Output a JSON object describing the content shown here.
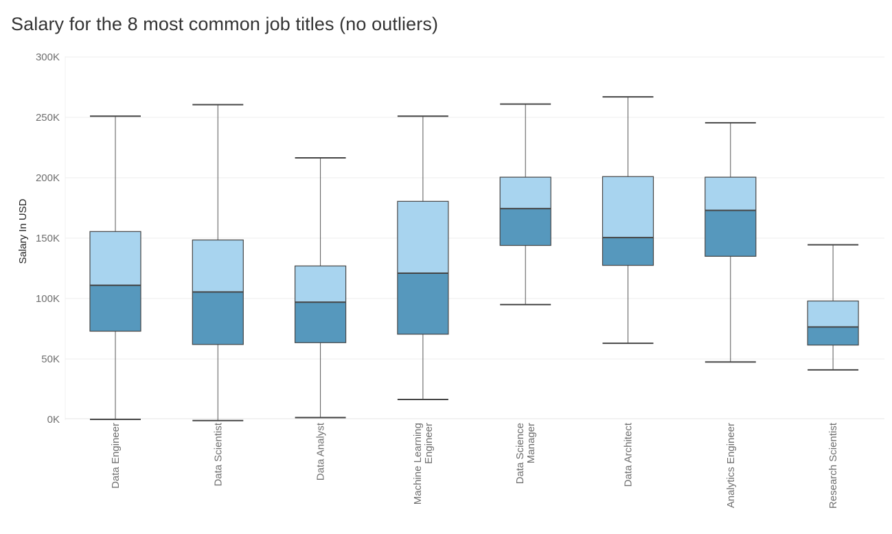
{
  "chart_data": {
    "type": "boxplot",
    "title": "Salary for the 8 most common job titles (no outliers)",
    "ylabel": "Salary In USD",
    "xlabel": "",
    "ylim": [
      0,
      300000
    ],
    "y_ticks": [
      {
        "value": 0,
        "label": "0K"
      },
      {
        "value": 50000,
        "label": "50K"
      },
      {
        "value": 100000,
        "label": "100K"
      },
      {
        "value": 150000,
        "label": "150K"
      },
      {
        "value": 200000,
        "label": "200K"
      },
      {
        "value": 250000,
        "label": "250K"
      },
      {
        "value": 300000,
        "label": "300K"
      }
    ],
    "grid": true,
    "colors": {
      "upper_box": "#a8d4ef",
      "lower_box": "#5698bd",
      "outline": "#444444",
      "whisker": "#555555",
      "grid": "#ececec"
    },
    "categories": [
      {
        "label_lines": [
          "Data Engineer"
        ],
        "min": 0,
        "q1": 73000,
        "median": 111000,
        "q3": 155500,
        "max": 251000
      },
      {
        "label_lines": [
          "Data Scientist"
        ],
        "min": -1000,
        "q1": 62000,
        "median": 105500,
        "q3": 148500,
        "max": 260500
      },
      {
        "label_lines": [
          "Data Analyst"
        ],
        "min": 1500,
        "q1": 63500,
        "median": 97000,
        "q3": 127000,
        "max": 216500
      },
      {
        "label_lines": [
          "Machine Learning",
          "Engineer"
        ],
        "min": 16500,
        "q1": 70500,
        "median": 121000,
        "q3": 180500,
        "max": 251000
      },
      {
        "label_lines": [
          "Data Science",
          "Manager"
        ],
        "min": 95000,
        "q1": 144000,
        "median": 174500,
        "q3": 200500,
        "max": 261000
      },
      {
        "label_lines": [
          "Data Architect"
        ],
        "min": 63000,
        "q1": 127500,
        "median": 150500,
        "q3": 201000,
        "max": 267000
      },
      {
        "label_lines": [
          "Analytics Engineer"
        ],
        "min": 47500,
        "q1": 135000,
        "median": 173000,
        "q3": 200500,
        "max": 245500
      },
      {
        "label_lines": [
          "Research Scientist"
        ],
        "min": 41000,
        "q1": 61500,
        "median": 76500,
        "q3": 98000,
        "max": 144500
      }
    ]
  }
}
